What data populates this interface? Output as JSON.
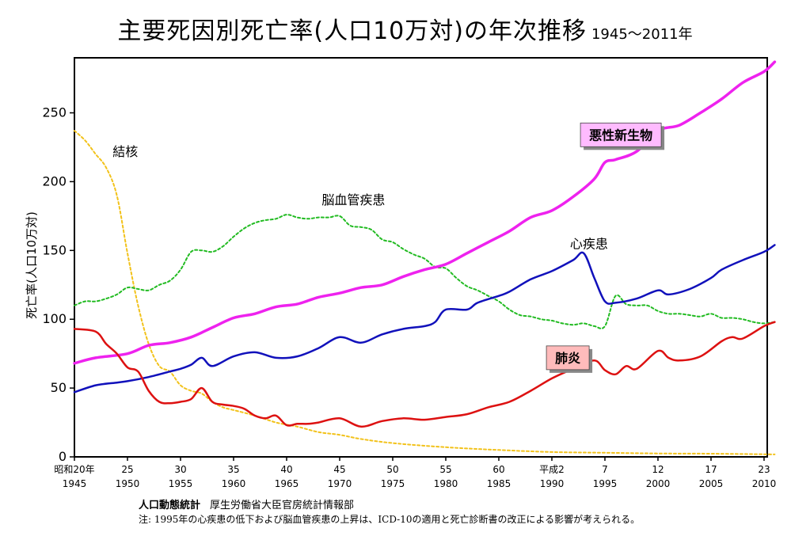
{
  "title": {
    "main": "主要死因別死亡率(人口10万対)の年次推移",
    "sub": "1945〜2011年"
  },
  "source": {
    "bold": "人口動態統計",
    "text": "厚生労働省大臣官房統計情報部"
  },
  "note": "注: 1995年の心疾患の低下および脳血管疾患の上昇は、ICD-10の適用と死亡診断書の改正による影響が考えられる。",
  "chart_data": {
    "type": "line",
    "ylabel": "死亡率(人口10万対)",
    "xlabel": "",
    "xlim": [
      1945,
      2011
    ],
    "ylim": [
      0,
      290
    ],
    "yticks": [
      0,
      50,
      100,
      150,
      200,
      250
    ],
    "xticks": [
      {
        "year": 1945,
        "top": "昭和20年",
        "bottom": "1945"
      },
      {
        "year": 1950,
        "top": "25",
        "bottom": "1950"
      },
      {
        "year": 1955,
        "top": "30",
        "bottom": "1955"
      },
      {
        "year": 1960,
        "top": "35",
        "bottom": "1960"
      },
      {
        "year": 1965,
        "top": "40",
        "bottom": "1965"
      },
      {
        "year": 1970,
        "top": "45",
        "bottom": "1970"
      },
      {
        "year": 1975,
        "top": "50",
        "bottom": "1975"
      },
      {
        "year": 1980,
        "top": "55",
        "bottom": "1980"
      },
      {
        "year": 1985,
        "top": "60",
        "bottom": "1985"
      },
      {
        "year": 1990,
        "top": "平成2",
        "bottom": "1990"
      },
      {
        "year": 1995,
        "top": "7",
        "bottom": "1995"
      },
      {
        "year": 2000,
        "top": "12",
        "bottom": "2000"
      },
      {
        "year": 2005,
        "top": "17",
        "bottom": "2005"
      },
      {
        "year": 2010,
        "top": "23",
        "bottom": "2010"
      }
    ],
    "series": [
      {
        "name": "結核",
        "color": "#f2c21b",
        "dash": "3,3",
        "width": 2,
        "x": [
          1945,
          1946,
          1947,
          1948,
          1949,
          1950,
          1951,
          1952,
          1953,
          1954,
          1955,
          1956,
          1957,
          1958,
          1959,
          1960,
          1962,
          1964,
          1966,
          1968,
          1970,
          1972,
          1975,
          1980,
          1985,
          1990,
          1995,
          2000,
          2005,
          2011
        ],
        "y": [
          237,
          230,
          220,
          210,
          190,
          148,
          110,
          82,
          66,
          62,
          52,
          48,
          46,
          40,
          36,
          34,
          30,
          25,
          22,
          18,
          16,
          13,
          10,
          7,
          5,
          3.5,
          3,
          2.5,
          2.3,
          1.8
        ]
      },
      {
        "name": "脳血管疾患",
        "color": "#22bb22",
        "dash": "3,3",
        "width": 2,
        "x": [
          1945,
          1946,
          1947,
          1948,
          1949,
          1950,
          1951,
          1952,
          1953,
          1954,
          1955,
          1956,
          1957,
          1958,
          1959,
          1960,
          1961,
          1962,
          1963,
          1964,
          1965,
          1966,
          1967,
          1968,
          1969,
          1970,
          1971,
          1972,
          1973,
          1974,
          1975,
          1976,
          1977,
          1978,
          1979,
          1980,
          1981,
          1982,
          1983,
          1984,
          1985,
          1986,
          1987,
          1988,
          1989,
          1990,
          1991,
          1992,
          1993,
          1994,
          1995,
          1996,
          1997,
          1998,
          1999,
          2000,
          2001,
          2002,
          2003,
          2004,
          2005,
          2006,
          2007,
          2008,
          2009,
          2010,
          2011
        ],
        "y": [
          110,
          113,
          113,
          115,
          118,
          123,
          122,
          121,
          125,
          128,
          136,
          149,
          150,
          149,
          153,
          160,
          166,
          170,
          172,
          173,
          176,
          174,
          173,
          174,
          174,
          175,
          168,
          167,
          165,
          158,
          156,
          151,
          147,
          144,
          138,
          137,
          130,
          124,
          121,
          117,
          113,
          107,
          103,
          102,
          100,
          99,
          97,
          96,
          97,
          95,
          95,
          117,
          111,
          110,
          110,
          106,
          104,
          104,
          103,
          102,
          104,
          101,
          101,
          100,
          98,
          97,
          98
        ]
      },
      {
        "name": "悪性新生物",
        "color": "#ee22ee",
        "dash": "",
        "width": 3.5,
        "x": [
          1945,
          1947,
          1950,
          1952,
          1954,
          1956,
          1958,
          1960,
          1962,
          1964,
          1966,
          1968,
          1970,
          1972,
          1974,
          1976,
          1978,
          1980,
          1982,
          1984,
          1986,
          1988,
          1990,
          1992,
          1994,
          1995,
          1996,
          1998,
          2000,
          2002,
          2004,
          2006,
          2008,
          2010,
          2011
        ],
        "y": [
          68,
          72,
          75,
          81,
          83,
          87,
          94,
          101,
          104,
          109,
          111,
          116,
          119,
          123,
          125,
          131,
          136,
          140,
          148,
          156,
          164,
          174,
          179,
          189,
          202,
          214,
          216,
          222,
          237,
          241,
          250,
          260,
          272,
          280,
          287
        ]
      },
      {
        "name": "心疾患",
        "color": "#1111bb",
        "dash": "",
        "width": 2.5,
        "x": [
          1945,
          1947,
          1949,
          1950,
          1952,
          1954,
          1955,
          1956,
          1957,
          1958,
          1960,
          1962,
          1964,
          1966,
          1968,
          1970,
          1972,
          1974,
          1976,
          1978,
          1979,
          1980,
          1982,
          1983,
          1985,
          1986,
          1988,
          1990,
          1992,
          1993,
          1994,
          1995,
          1996,
          1998,
          2000,
          2001,
          2003,
          2005,
          2006,
          2008,
          2010,
          2011
        ],
        "y": [
          47,
          52,
          54,
          55,
          58,
          62,
          64,
          67,
          72,
          66,
          73,
          76,
          72,
          73,
          79,
          87,
          83,
          89,
          93,
          95,
          98,
          107,
          107,
          112,
          117,
          120,
          129,
          135,
          143,
          148,
          130,
          113,
          112,
          115,
          121,
          118,
          122,
          130,
          136,
          143,
          149,
          154
        ]
      },
      {
        "name": "肺炎",
        "color": "#dd1111",
        "dash": "",
        "width": 2.5,
        "x": [
          1945,
          1947,
          1948,
          1949,
          1950,
          1951,
          1952,
          1953,
          1954,
          1955,
          1956,
          1957,
          1958,
          1959,
          1960,
          1961,
          1962,
          1963,
          1964,
          1965,
          1966,
          1967,
          1968,
          1970,
          1972,
          1974,
          1976,
          1978,
          1980,
          1982,
          1984,
          1986,
          1988,
          1990,
          1992,
          1994,
          1995,
          1996,
          1997,
          1998,
          2000,
          2001,
          2002,
          2004,
          2006,
          2007,
          2008,
          2010,
          2011
        ],
        "y": [
          93,
          91,
          82,
          75,
          65,
          62,
          48,
          40,
          39,
          40,
          42,
          50,
          40,
          38,
          37,
          35,
          30,
          28,
          30,
          23,
          24,
          24,
          25,
          28,
          22,
          26,
          28,
          27,
          29,
          31,
          36,
          40,
          48,
          57,
          64,
          70,
          63,
          60,
          66,
          64,
          77,
          72,
          70,
          73,
          84,
          87,
          86,
          95,
          98
        ]
      }
    ],
    "annotations": [
      {
        "text": "結核",
        "x": 1949.8,
        "y": 222,
        "boxed": false
      },
      {
        "text": "脳血管疾患",
        "x": 1971.3,
        "y": 187,
        "boxed": false
      },
      {
        "text": "悪性新生物",
        "x": 1996.5,
        "y": 234,
        "boxed": true,
        "fill": "#ffbbff"
      },
      {
        "text": "心疾患",
        "x": 1993.5,
        "y": 155,
        "boxed": false
      },
      {
        "text": "肺炎",
        "x": 1991.5,
        "y": 72,
        "boxed": true,
        "fill": "#ffbbbb"
      }
    ]
  }
}
